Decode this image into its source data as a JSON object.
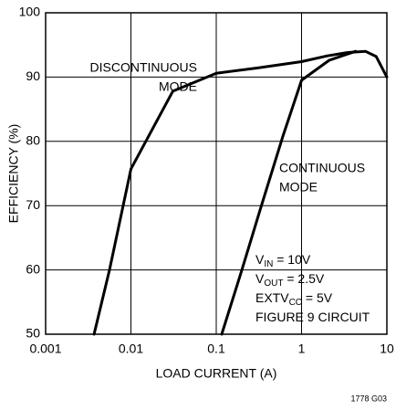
{
  "chart_data": {
    "type": "line",
    "xlabel": "LOAD CURRENT (A)",
    "ylabel": "EFFICIENCY (%)",
    "xscale": "log",
    "xlim": [
      0.001,
      10
    ],
    "xticks": [
      0.001,
      0.01,
      0.1,
      1,
      10
    ],
    "ylim": [
      50,
      100
    ],
    "yticks": [
      50,
      60,
      70,
      80,
      90,
      100
    ],
    "grid": true,
    "series": [
      {
        "color": "#000000",
        "x": [
          0.0037,
          0.0056,
          0.01,
          0.031,
          0.1,
          0.3,
          1,
          2,
          3.4,
          5.6,
          7.5,
          10
        ],
        "values": [
          50,
          60,
          75.7,
          87.8,
          90.6,
          91.4,
          92.4,
          93.3,
          93.8,
          94,
          93.2,
          90
        ]
      },
      {
        "color": "#000000",
        "x": [
          0.116,
          0.2,
          0.326,
          0.6,
          1,
          2.1,
          4.3
        ],
        "values": [
          50,
          60,
          69.3,
          80.7,
          89.5,
          92.6,
          94
        ]
      }
    ],
    "annotations": [
      {
        "lines": [
          "DISCONTINUOUS",
          "MODE"
        ]
      },
      {
        "lines": [
          "CONTINUOUS",
          "MODE"
        ]
      }
    ],
    "conditions": [
      [
        {
          "text": "V"
        },
        {
          "sub": "IN"
        },
        {
          "text": " = 10V"
        }
      ],
      [
        {
          "text": "V"
        },
        {
          "sub": "OUT"
        },
        {
          "text": " = 2.5V"
        }
      ],
      [
        {
          "text": "EXTV"
        },
        {
          "sub": "CC"
        },
        {
          "text": " = 5V"
        }
      ],
      [
        {
          "text": "FIGURE 9 CIRCUIT"
        }
      ]
    ],
    "footnote": "1778 G03"
  }
}
